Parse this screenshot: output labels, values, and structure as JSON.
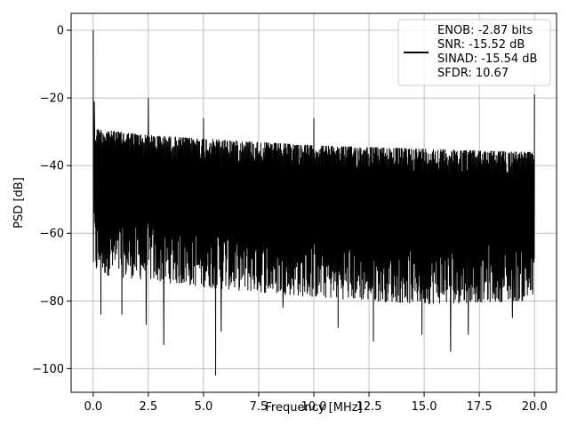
{
  "chart_data": {
    "type": "line",
    "title": "",
    "xlabel": "Frequency [MHz]",
    "ylabel": "PSD [dB]",
    "xlim": [
      -1.0,
      21.0
    ],
    "ylim": [
      -107,
      5
    ],
    "xticks": [
      0.0,
      2.5,
      5.0,
      7.5,
      10.0,
      12.5,
      15.0,
      17.5,
      20.0
    ],
    "xtick_labels": [
      "0.0",
      "2.5",
      "5.0",
      "7.5",
      "10.0",
      "12.5",
      "15.0",
      "17.5",
      "20.0"
    ],
    "yticks": [
      0,
      -20,
      -40,
      -60,
      -80,
      -100
    ],
    "ytick_labels": [
      "0",
      "−20",
      "−40",
      "−60",
      "−80",
      "−100"
    ],
    "grid": true,
    "legend_placement": "top-right",
    "series": [
      {
        "name": "",
        "color": "#000000",
        "noise_floor": {
          "upper_envelope": [
            [
              0.0,
              -29
            ],
            [
              2.5,
              -31
            ],
            [
              5.0,
              -32
            ],
            [
              10.0,
              -34
            ],
            [
              15.0,
              -35
            ],
            [
              20.0,
              -36
            ]
          ],
          "lower_envelope": [
            [
              0.0,
              -72
            ],
            [
              5.0,
              -76
            ],
            [
              10.0,
              -79
            ],
            [
              15.0,
              -81
            ],
            [
              20.0,
              -80
            ]
          ]
        },
        "peaks": [
          {
            "x": 0.0,
            "y": 0
          },
          {
            "x": 0.05,
            "y": -21
          },
          {
            "x": 2.5,
            "y": -20
          },
          {
            "x": 5.0,
            "y": -26
          },
          {
            "x": 10.0,
            "y": -26
          },
          {
            "x": 20.0,
            "y": -19
          }
        ],
        "dips": [
          {
            "x": 0.35,
            "y": -84
          },
          {
            "x": 1.3,
            "y": -84
          },
          {
            "x": 2.4,
            "y": -87
          },
          {
            "x": 3.2,
            "y": -93
          },
          {
            "x": 5.0,
            "y": -80
          },
          {
            "x": 5.55,
            "y": -102
          },
          {
            "x": 5.8,
            "y": -89
          },
          {
            "x": 8.6,
            "y": -82
          },
          {
            "x": 11.1,
            "y": -88
          },
          {
            "x": 12.7,
            "y": -92
          },
          {
            "x": 14.9,
            "y": -90
          },
          {
            "x": 16.2,
            "y": -95
          },
          {
            "x": 17.0,
            "y": -90
          },
          {
            "x": 19.0,
            "y": -85
          }
        ]
      }
    ],
    "legend_entries": [
      "ENOB: -2.87 bits",
      "SNR: -15.52 dB",
      "SINAD: -15.54 dB",
      "SFDR: 10.67"
    ]
  }
}
